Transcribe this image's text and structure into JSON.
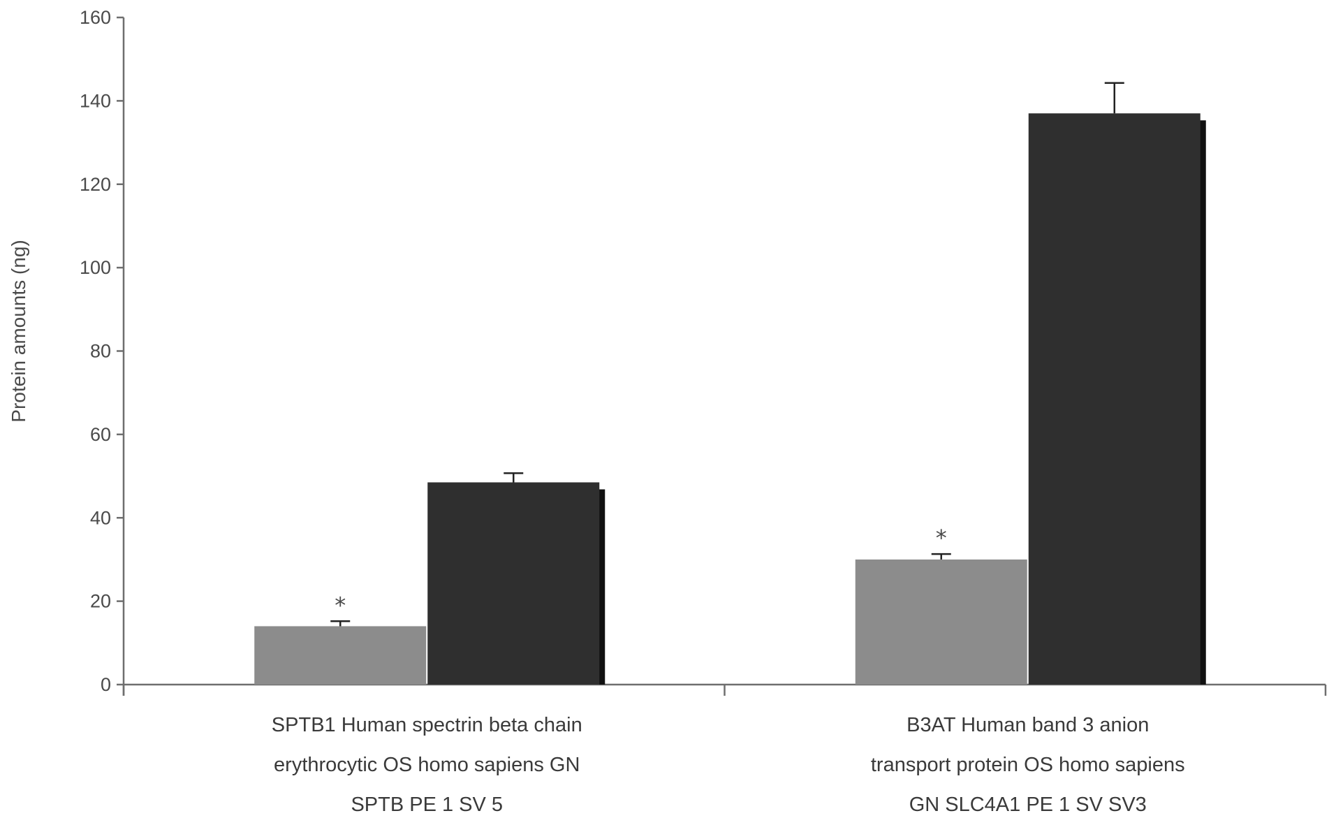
{
  "chart_data": {
    "type": "bar",
    "title": "",
    "xlabel": "",
    "ylabel": "Protein amounts (ng)",
    "ylim": [
      0,
      160
    ],
    "yticks": [
      0,
      20,
      40,
      60,
      80,
      100,
      120,
      140,
      160
    ],
    "grid": false,
    "legend": "none",
    "categories": [
      {
        "lines": [
          "SPTB1 Human spectrin beta chain",
          "erythrocytic OS homo sapiens GN",
          "SPTB PE 1 SV 5"
        ]
      },
      {
        "lines": [
          "B3AT Human band 3 anion",
          "transport protein OS homo sapiens",
          "GN SLC4A1 PE 1 SV SV3"
        ]
      }
    ],
    "series": [
      {
        "color": "#8c8c8c",
        "values": [
          14,
          30
        ],
        "errors": [
          1.2,
          1.3
        ]
      },
      {
        "color": "#2f2f2f",
        "values": [
          48.5,
          137
        ],
        "errors": [
          2.2,
          7.3
        ]
      }
    ],
    "annotations": [
      {
        "series": 0,
        "category": 0,
        "text": "*"
      },
      {
        "series": 0,
        "category": 1,
        "text": "*"
      }
    ]
  }
}
